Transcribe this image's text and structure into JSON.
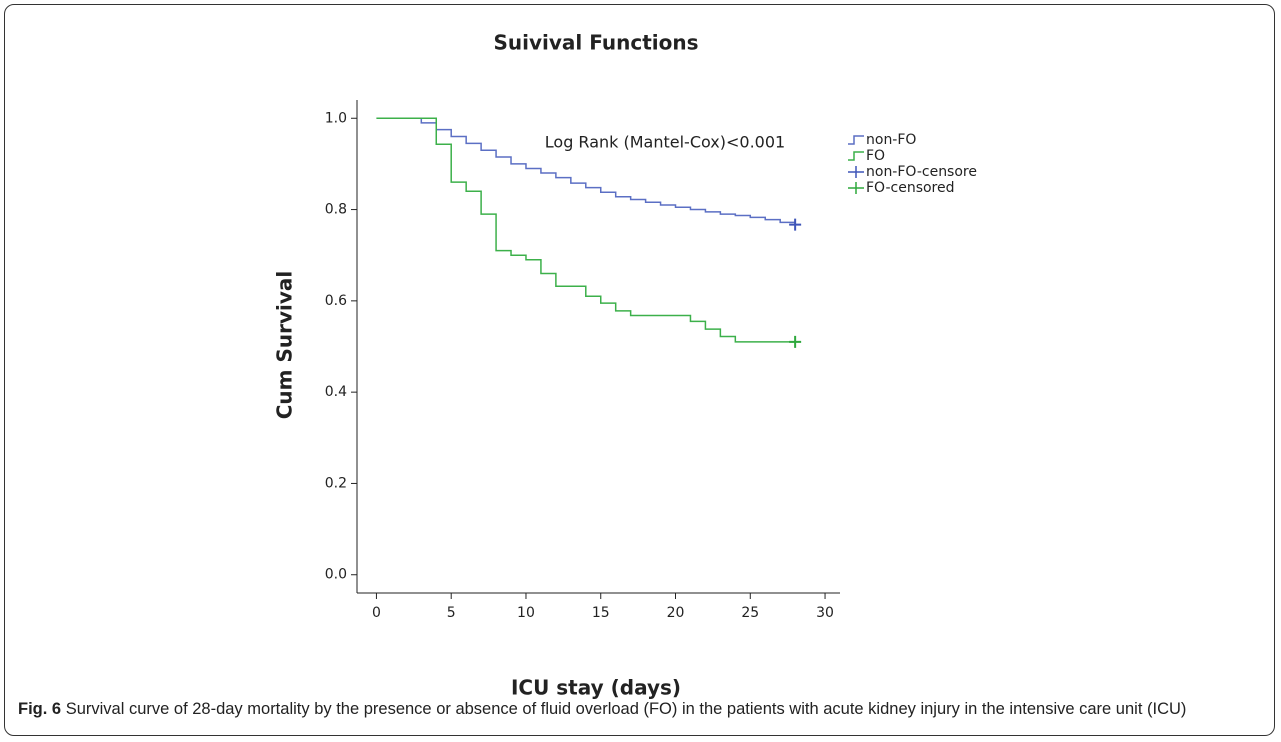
{
  "chart_data": {
    "type": "step",
    "title": "Suivival Functions",
    "x_label": "ICU stay (days)",
    "y_label": "Cum Survival",
    "annotation": "Log Rank (Mantel-Cox)<0.001",
    "xlim": [
      -1.3,
      31
    ],
    "ylim": [
      -0.04,
      1.04
    ],
    "xticks": [
      0,
      5,
      10,
      15,
      20,
      25,
      30
    ],
    "yticks": [
      {
        "value": 0,
        "label": "0.0"
      },
      {
        "value": 0.2,
        "label": "0.2"
      },
      {
        "value": 0.4,
        "label": "0.4"
      },
      {
        "value": 0.6,
        "label": "0.6"
      },
      {
        "value": 0.8,
        "label": "0.8"
      },
      {
        "value": 1,
        "label": "1.0"
      }
    ],
    "legend": "right",
    "series": [
      {
        "name": "non-FO",
        "color": "#5b6fc4",
        "kind": "line",
        "x": [
          0,
          3,
          4,
          5,
          6,
          7,
          8,
          9,
          10,
          11,
          12,
          13,
          14,
          15,
          16,
          17,
          18,
          19,
          20,
          21,
          22,
          23,
          24,
          25,
          26,
          27,
          28
        ],
        "values": [
          1.0,
          0.99,
          0.975,
          0.96,
          0.945,
          0.93,
          0.915,
          0.9,
          0.89,
          0.88,
          0.87,
          0.858,
          0.848,
          0.838,
          0.828,
          0.822,
          0.816,
          0.81,
          0.805,
          0.8,
          0.795,
          0.79,
          0.787,
          0.783,
          0.778,
          0.772,
          0.765
        ]
      },
      {
        "name": "FO",
        "color": "#3cb04a",
        "kind": "line",
        "x": [
          0,
          4,
          5,
          6,
          7,
          8,
          9,
          10,
          11,
          12,
          14,
          15,
          16,
          17,
          21,
          22,
          23,
          24,
          28
        ],
        "values": [
          1.0,
          0.943,
          0.86,
          0.84,
          0.79,
          0.71,
          0.7,
          0.69,
          0.66,
          0.632,
          0.61,
          0.595,
          0.578,
          0.568,
          0.555,
          0.538,
          0.522,
          0.51,
          0.51
        ]
      },
      {
        "name": "non-FO-censore",
        "color": "#3f55b8",
        "kind": "censor",
        "x": [
          28
        ],
        "values": [
          0.767
        ]
      },
      {
        "name": "FO-censored",
        "color": "#2ea83c",
        "kind": "censor",
        "x": [
          28
        ],
        "values": [
          0.51
        ]
      }
    ]
  },
  "caption": {
    "label": "Fig. 6",
    "text": "Survival curve of 28-day mortality by the presence or absence of fluid overload (FO) in the patients with acute kidney injury in the intensive care unit (ICU)"
  }
}
